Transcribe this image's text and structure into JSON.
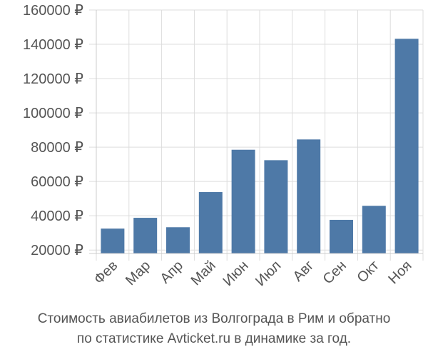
{
  "chart_data": {
    "type": "bar",
    "categories": [
      "Фев",
      "Мар",
      "Апр",
      "Май",
      "Июн",
      "Июл",
      "Авг",
      "Сен",
      "Окт",
      "Ноя"
    ],
    "values": [
      32500,
      38800,
      33300,
      53800,
      78500,
      72400,
      84500,
      37600,
      45800,
      143200
    ],
    "y_ticks": [
      "20000 ₽",
      "40000 ₽",
      "60000 ₽",
      "80000 ₽",
      "100000 ₽",
      "120000 ₽",
      "140000 ₽",
      "160000 ₽"
    ],
    "ylim": [
      18000,
      160000
    ],
    "grid": true,
    "bar_color": "#4e79a7",
    "caption_line_1": "Стоимость авиабилетов из Волгограда в Рим и обратно",
    "caption_line_2": "по статистике Avticket.ru в динамике за год."
  }
}
